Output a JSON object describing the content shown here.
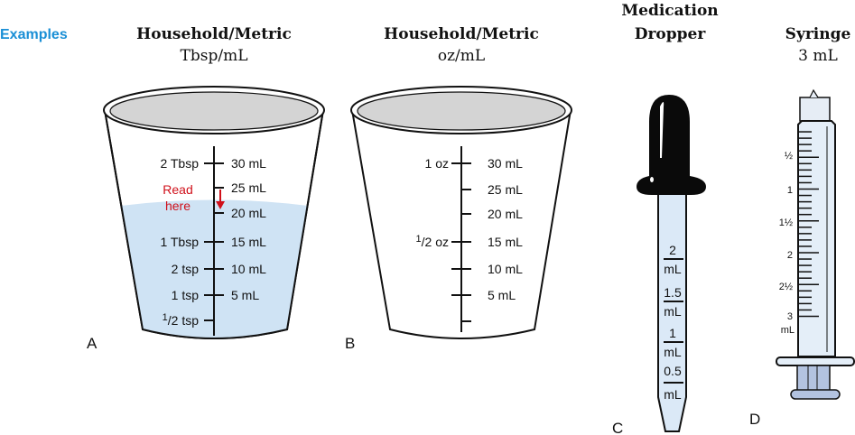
{
  "heading": "Examples",
  "colors": {
    "accent": "#1a8fd6",
    "liquid": "#cfe3f4",
    "read_here": "#d0101a"
  },
  "panels": {
    "a": {
      "letter": "A",
      "title": "Household/Metric",
      "subtitle": "Tbsp/mL",
      "left_labels": [
        "2 Tbsp",
        "1 Tbsp",
        "2 tsp",
        "1 tsp"
      ],
      "half_tsp": {
        "num": "1",
        "den": "/2 tsp"
      },
      "right_labels": [
        "30 mL",
        "25 mL",
        "20 mL",
        "15 mL",
        "10 mL",
        "5 mL"
      ],
      "read_here": [
        "Read",
        "here"
      ]
    },
    "b": {
      "letter": "B",
      "title": "Household/Metric",
      "subtitle": "oz/mL",
      "one_oz": "1 oz",
      "half_oz": {
        "num": "1",
        "den": "/2 oz"
      },
      "right_labels": [
        "30 mL",
        "25 mL",
        "20 mL",
        "15 mL",
        "10 mL",
        "5 mL"
      ]
    },
    "c": {
      "letter": "C",
      "title_line1": "Medication",
      "title_line2": "Dropper",
      "marks": [
        {
          "value": "2",
          "unit": "mL"
        },
        {
          "value": "1.5",
          "unit": "mL"
        },
        {
          "value": "1",
          "unit": "mL"
        },
        {
          "value": "0.5",
          "unit": "mL"
        }
      ]
    },
    "d": {
      "letter": "D",
      "title": "Syringe",
      "subtitle": "3 mL",
      "half": "½",
      "one": "1",
      "one_half": {
        "w": "1",
        "f": "½"
      },
      "two": "2",
      "two_half": {
        "w": "2",
        "f": "½"
      },
      "three": "3",
      "unit": "mL"
    }
  }
}
